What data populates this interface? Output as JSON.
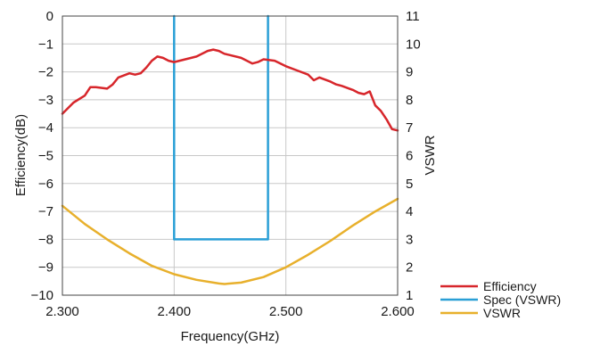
{
  "chart_data": {
    "type": "line",
    "title": "",
    "xlabel": "Frequency(GHz)",
    "ylabel_left": "Efficiency(dB)",
    "ylabel_right": "VSWR",
    "xlim": [
      2.3,
      2.6
    ],
    "ylim_left": [
      -10,
      0
    ],
    "ylim_right": [
      1,
      11
    ],
    "x_ticks": [
      "2.300",
      "2.400",
      "2.500",
      "2.600"
    ],
    "x_tick_values": [
      2.3,
      2.4,
      2.5,
      2.6
    ],
    "y_left_ticks": [
      "0",
      "−1",
      "−2",
      "−3",
      "−4",
      "−5",
      "−6",
      "−7",
      "−8",
      "−9",
      "−10"
    ],
    "y_left_tick_values": [
      0,
      -1,
      -2,
      -3,
      -4,
      -5,
      -6,
      -7,
      -8,
      -9,
      -10
    ],
    "y_right_ticks": [
      "11",
      "10",
      "9",
      "8",
      "7",
      "6",
      "5",
      "4",
      "3",
      "2",
      "1"
    ],
    "y_right_tick_values": [
      11,
      10,
      9,
      8,
      7,
      6,
      5,
      4,
      3,
      2,
      1
    ],
    "grid": true,
    "legend_position": "bottom-right",
    "series": [
      {
        "name": "Efficiency",
        "axis": "left",
        "color": "#d7262b",
        "x": [
          2.3,
          2.31,
          2.32,
          2.325,
          2.33,
          2.34,
          2.345,
          2.35,
          2.36,
          2.365,
          2.37,
          2.375,
          2.38,
          2.385,
          2.39,
          2.395,
          2.4,
          2.41,
          2.42,
          2.43,
          2.435,
          2.44,
          2.445,
          2.45,
          2.46,
          2.47,
          2.475,
          2.48,
          2.49,
          2.5,
          2.51,
          2.52,
          2.525,
          2.53,
          2.54,
          2.545,
          2.55,
          2.56,
          2.565,
          2.57,
          2.575,
          2.58,
          2.585,
          2.59,
          2.595,
          2.6
        ],
        "y": [
          -3.5,
          -3.1,
          -2.85,
          -2.55,
          -2.55,
          -2.6,
          -2.45,
          -2.2,
          -2.05,
          -2.1,
          -2.05,
          -1.85,
          -1.6,
          -1.45,
          -1.5,
          -1.6,
          -1.65,
          -1.55,
          -1.45,
          -1.25,
          -1.2,
          -1.25,
          -1.35,
          -1.4,
          -1.5,
          -1.7,
          -1.65,
          -1.55,
          -1.6,
          -1.8,
          -1.95,
          -2.1,
          -2.3,
          -2.2,
          -2.35,
          -2.45,
          -2.5,
          -2.65,
          -2.75,
          -2.8,
          -2.7,
          -3.2,
          -3.4,
          -3.7,
          -4.05,
          -4.1
        ]
      },
      {
        "name": "Spec (VSWR)",
        "axis": "right",
        "color": "#2a9fd6",
        "x": [
          2.4,
          2.4,
          2.484,
          2.484
        ],
        "y": [
          11,
          3,
          3,
          11
        ]
      },
      {
        "name": "VSWR",
        "axis": "right",
        "color": "#e8b02c",
        "x": [
          2.3,
          2.32,
          2.34,
          2.36,
          2.38,
          2.4,
          2.42,
          2.44,
          2.445,
          2.46,
          2.48,
          2.5,
          2.52,
          2.54,
          2.56,
          2.58,
          2.6
        ],
        "y": [
          4.2,
          3.55,
          3.0,
          2.5,
          2.05,
          1.75,
          1.55,
          1.42,
          1.4,
          1.45,
          1.65,
          2.0,
          2.45,
          2.95,
          3.5,
          4.0,
          4.45
        ]
      }
    ]
  }
}
